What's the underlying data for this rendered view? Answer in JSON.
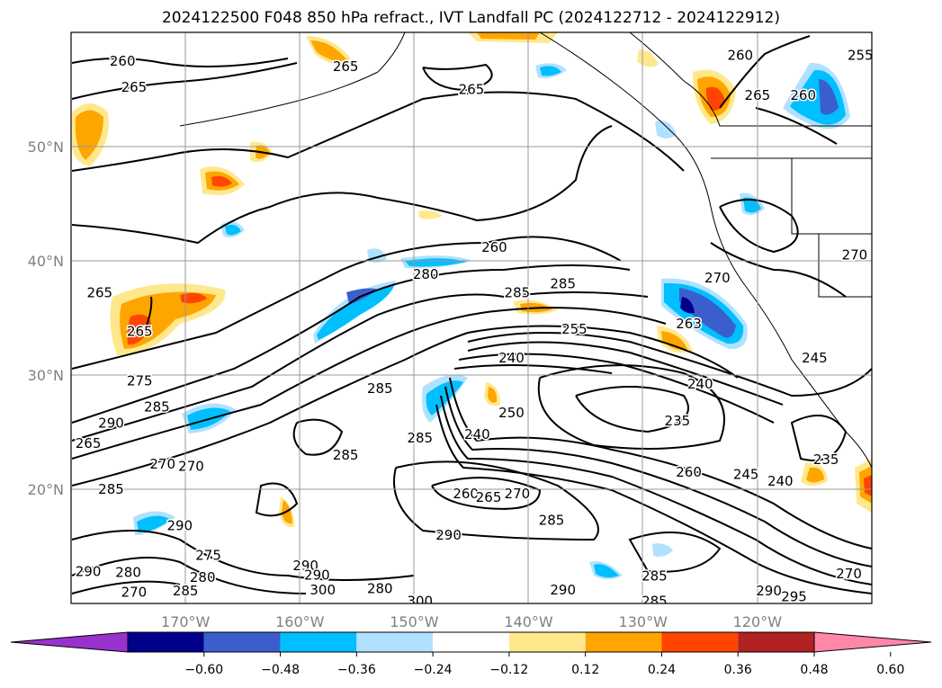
{
  "chart_data": {
    "type": "contour",
    "title": "2024122500 F048 850 hPa refract., IVT Landfall PC (2024122712 - 2024122912)",
    "projection": "PlateCarree",
    "lon_range": [
      -180,
      -110
    ],
    "lat_range": [
      10,
      60
    ],
    "grid": true,
    "lon_ticks": [
      -170,
      -160,
      -150,
      -140,
      -130,
      -120
    ],
    "lon_tick_labels": [
      "170°W",
      "160°W",
      "150°W",
      "140°W",
      "130°W",
      "120°W"
    ],
    "lat_ticks": [
      20,
      30,
      40,
      50
    ],
    "lat_tick_labels": [
      "20°N",
      "30°N",
      "40°N",
      "50°N"
    ],
    "colorbar": {
      "orientation": "horizontal",
      "extend": "both",
      "ticks": [
        "−0.60",
        "−0.48",
        "−0.36",
        "−0.24",
        "−0.12",
        "0.12",
        "0.24",
        "0.36",
        "0.48",
        "0.60"
      ],
      "colors": [
        "#9932cc",
        "#00008b",
        "#3a5fcd",
        "#00bfff",
        "#b0e2ff",
        "#ffffff",
        "#ffe88c",
        "#ffa500",
        "#ff4500",
        "#b22222",
        "#ff88aa"
      ]
    },
    "contour_labels": [
      {
        "text": "260",
        "lon": -175.5,
        "lat": 57.5
      },
      {
        "text": "265",
        "lon": -174.5,
        "lat": 55.2
      },
      {
        "text": "265",
        "lon": -156,
        "lat": 57
      },
      {
        "text": "265",
        "lon": -145,
        "lat": 55
      },
      {
        "text": "260",
        "lon": -121.5,
        "lat": 58
      },
      {
        "text": "265",
        "lon": -120,
        "lat": 54.5
      },
      {
        "text": "260",
        "lon": -116,
        "lat": 54.5
      },
      {
        "text": "255",
        "lon": -111,
        "lat": 58
      },
      {
        "text": "260",
        "lon": -143,
        "lat": 41.2
      },
      {
        "text": "280",
        "lon": -149,
        "lat": 38.8
      },
      {
        "text": "285",
        "lon": -141,
        "lat": 37.2
      },
      {
        "text": "285",
        "lon": -137,
        "lat": 38
      },
      {
        "text": "265",
        "lon": -177.5,
        "lat": 37.2
      },
      {
        "text": "265",
        "lon": -174,
        "lat": 33.8
      },
      {
        "text": "270",
        "lon": -123.5,
        "lat": 38.5
      },
      {
        "text": "270",
        "lon": -111.5,
        "lat": 40.5
      },
      {
        "text": "263",
        "lon": -126,
        "lat": 34.5
      },
      {
        "text": "275",
        "lon": -174,
        "lat": 29.5
      },
      {
        "text": "285",
        "lon": -153,
        "lat": 28.8
      },
      {
        "text": "285",
        "lon": -172.5,
        "lat": 27.2
      },
      {
        "text": "290",
        "lon": -176.5,
        "lat": 25.8
      },
      {
        "text": "265",
        "lon": -178.5,
        "lat": 24
      },
      {
        "text": "270",
        "lon": -172,
        "lat": 22.2
      },
      {
        "text": "270",
        "lon": -169.5,
        "lat": 22
      },
      {
        "text": "285",
        "lon": -156,
        "lat": 23
      },
      {
        "text": "285",
        "lon": -149.5,
        "lat": 24.5
      },
      {
        "text": "240",
        "lon": -141.5,
        "lat": 31.5
      },
      {
        "text": "255",
        "lon": -136,
        "lat": 34
      },
      {
        "text": "240",
        "lon": -125,
        "lat": 29.2
      },
      {
        "text": "250",
        "lon": -141.5,
        "lat": 26.7
      },
      {
        "text": "240",
        "lon": -144.5,
        "lat": 24.8
      },
      {
        "text": "235",
        "lon": -127,
        "lat": 26
      },
      {
        "text": "260",
        "lon": -126,
        "lat": 21.5
      },
      {
        "text": "245",
        "lon": -121,
        "lat": 21.3
      },
      {
        "text": "240",
        "lon": -118,
        "lat": 20.7
      },
      {
        "text": "235",
        "lon": -114,
        "lat": 22.6
      },
      {
        "text": "285",
        "lon": -176.5,
        "lat": 20
      },
      {
        "text": "260",
        "lon": -145.5,
        "lat": 19.6
      },
      {
        "text": "265",
        "lon": -143.5,
        "lat": 19.3
      },
      {
        "text": "270",
        "lon": -141,
        "lat": 19.6
      },
      {
        "text": "285",
        "lon": -138,
        "lat": 17.3
      },
      {
        "text": "290",
        "lon": -147,
        "lat": 16
      },
      {
        "text": "290",
        "lon": -170.5,
        "lat": 16.8
      },
      {
        "text": "275",
        "lon": -168,
        "lat": 14.2
      },
      {
        "text": "280",
        "lon": -168.5,
        "lat": 12.3
      },
      {
        "text": "290",
        "lon": -159.5,
        "lat": 13.3
      },
      {
        "text": "290",
        "lon": -158.5,
        "lat": 12.5
      },
      {
        "text": "300",
        "lon": -158,
        "lat": 11.2
      },
      {
        "text": "280",
        "lon": -153,
        "lat": 11.3
      },
      {
        "text": "290",
        "lon": -178.5,
        "lat": 12.8
      },
      {
        "text": "280",
        "lon": -175,
        "lat": 12.7
      },
      {
        "text": "270",
        "lon": -174.5,
        "lat": 11
      },
      {
        "text": "285",
        "lon": -170,
        "lat": 11.1
      },
      {
        "text": "300",
        "lon": -149.5,
        "lat": 10.2
      },
      {
        "text": "290",
        "lon": -137,
        "lat": 11.2
      },
      {
        "text": "285",
        "lon": -129,
        "lat": 10.2
      },
      {
        "text": "285",
        "lon": -129,
        "lat": 12.4
      },
      {
        "text": "290",
        "lon": -119,
        "lat": 11.1
      },
      {
        "text": "295",
        "lon": -116.8,
        "lat": 10.6
      },
      {
        "text": "270",
        "lon": -112,
        "lat": 12.6
      },
      {
        "text": "245",
        "lon": -115,
        "lat": 31.5
      }
    ]
  }
}
